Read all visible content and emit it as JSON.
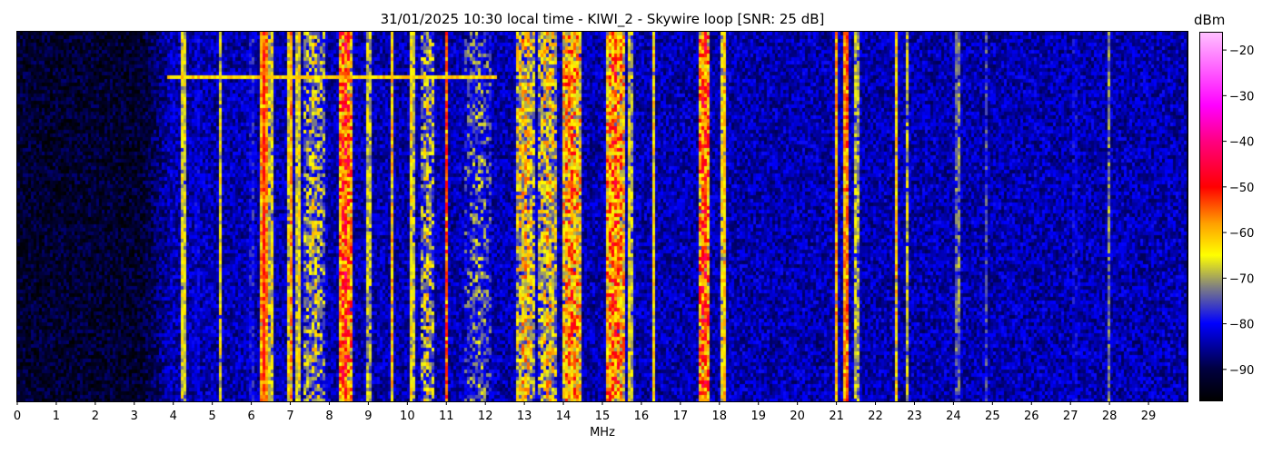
{
  "chart_data": {
    "type": "heatmap",
    "title": "31/01/2025 10:30 local time - KIWI_2 - Skywire loop [SNR: 25 dB]",
    "xlabel": "MHz",
    "ylabel": "",
    "xlim": [
      0,
      30
    ],
    "x_ticks": [
      "0",
      "1",
      "2",
      "3",
      "4",
      "5",
      "6",
      "7",
      "8",
      "9",
      "10",
      "11",
      "12",
      "13",
      "14",
      "15",
      "16",
      "17",
      "18",
      "19",
      "20",
      "21",
      "22",
      "23",
      "24",
      "25",
      "26",
      "27",
      "28",
      "29"
    ],
    "colorbar": {
      "label": "dBm",
      "range": [
        -97,
        -16
      ],
      "ticks": [
        "−20",
        "−30",
        "−40",
        "−50",
        "−60",
        "−70",
        "−80",
        "−90"
      ],
      "tick_values": [
        -20,
        -30,
        -40,
        -50,
        -60,
        -70,
        -80,
        -90
      ],
      "colormap": [
        {
          "v": -97,
          "c": "#000000"
        },
        {
          "v": -90,
          "c": "#000040"
        },
        {
          "v": -80,
          "c": "#0000ff"
        },
        {
          "v": -72,
          "c": "#808080"
        },
        {
          "v": -65,
          "c": "#ffff00"
        },
        {
          "v": -58,
          "c": "#ffa000"
        },
        {
          "v": -50,
          "c": "#ff0000"
        },
        {
          "v": -40,
          "c": "#ff0080"
        },
        {
          "v": -32,
          "c": "#ff00ff"
        },
        {
          "v": -16,
          "c": "#ffc0ff"
        }
      ]
    },
    "noise_floor": [
      {
        "f_start": 0,
        "f_end": 3.5,
        "level": -92
      },
      {
        "f_start": 3.5,
        "f_end": 30,
        "level": -84
      }
    ],
    "signals": [
      {
        "f": 4.25,
        "w": 0.05,
        "level": -60
      },
      {
        "f": 4.6,
        "w": 0.04,
        "level": -76
      },
      {
        "f": 5.2,
        "w": 0.05,
        "level": -64
      },
      {
        "f": 6.0,
        "w": 0.05,
        "level": -74
      },
      {
        "f": 6.32,
        "w": 0.08,
        "level": -50
      },
      {
        "f": 6.5,
        "w": 0.06,
        "level": -62
      },
      {
        "f": 7.0,
        "w": 0.06,
        "level": -56
      },
      {
        "f": 7.2,
        "w": 0.08,
        "level": -62
      },
      {
        "f": 7.6,
        "w": 0.3,
        "level": -68
      },
      {
        "f": 8.4,
        "w": 0.15,
        "level": -50
      },
      {
        "f": 9.0,
        "w": 0.05,
        "level": -62
      },
      {
        "f": 9.6,
        "w": 0.05,
        "level": -60
      },
      {
        "f": 10.1,
        "w": 0.08,
        "level": -62
      },
      {
        "f": 10.5,
        "w": 0.2,
        "level": -68
      },
      {
        "f": 11.0,
        "w": 0.06,
        "level": -52
      },
      {
        "f": 11.8,
        "w": 0.35,
        "level": -74
      },
      {
        "f": 13.0,
        "w": 0.25,
        "level": -62
      },
      {
        "f": 13.6,
        "w": 0.25,
        "level": -63
      },
      {
        "f": 14.2,
        "w": 0.25,
        "level": -56
      },
      {
        "f": 15.3,
        "w": 0.25,
        "level": -54
      },
      {
        "f": 15.7,
        "w": 0.06,
        "level": -62
      },
      {
        "f": 16.3,
        "w": 0.05,
        "level": -62
      },
      {
        "f": 17.6,
        "w": 0.12,
        "level": -50
      },
      {
        "f": 18.1,
        "w": 0.06,
        "level": -58
      },
      {
        "f": 21.0,
        "w": 0.05,
        "level": -56
      },
      {
        "f": 21.25,
        "w": 0.08,
        "level": -52
      },
      {
        "f": 21.5,
        "w": 0.06,
        "level": -64
      },
      {
        "f": 22.5,
        "w": 0.04,
        "level": -56
      },
      {
        "f": 22.8,
        "w": 0.04,
        "level": -66
      },
      {
        "f": 24.1,
        "w": 0.04,
        "level": -66
      },
      {
        "f": 24.8,
        "w": 0.04,
        "level": -70
      },
      {
        "f": 27.1,
        "w": 0.05,
        "level": -76
      },
      {
        "f": 28.0,
        "w": 0.04,
        "level": -66
      }
    ],
    "horizontal_burst": {
      "f_start": 3.8,
      "f_end": 12.3,
      "level": -62
    }
  }
}
